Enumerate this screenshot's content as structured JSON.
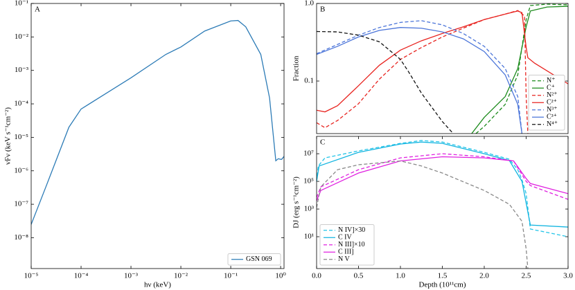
{
  "chart_data": [
    {
      "type": "line",
      "label": "A",
      "xlabel": "hν (keV)",
      "ylabel": "νFν (keV s⁻¹cm⁻²)",
      "xscale": "log",
      "yscale": "log",
      "xlim": [
        1e-05,
        1.17
      ],
      "ylim": [
        1.2e-09,
        0.1
      ],
      "xticks": [
        {
          "value": 1e-05,
          "label": "10⁻⁵"
        },
        {
          "value": 0.0001,
          "label": "10⁻⁴"
        },
        {
          "value": 0.001,
          "label": "10⁻³"
        },
        {
          "value": 0.01,
          "label": "10⁻²"
        },
        {
          "value": 0.1,
          "label": "10⁻¹"
        },
        {
          "value": 1,
          "label": "10⁰"
        }
      ],
      "yticks": [
        {
          "value": 1e-08,
          "label": "10⁻⁸"
        },
        {
          "value": 1e-07,
          "label": "10⁻⁷"
        },
        {
          "value": 1e-06,
          "label": "10⁻⁶"
        },
        {
          "value": 1e-05,
          "label": "10⁻⁵"
        },
        {
          "value": 0.0001,
          "label": "10⁻⁴"
        },
        {
          "value": 0.001,
          "label": "10⁻³"
        },
        {
          "value": 0.01,
          "label": "10⁻²"
        },
        {
          "value": 0.1,
          "label": "10⁻¹"
        }
      ],
      "legend": "lower right",
      "series": [
        {
          "name": "GSN 069",
          "color": "#2c7bb6",
          "dash": "solid",
          "x": [
            1e-05,
            2e-05,
            5.7e-05,
            0.0001,
            0.001,
            0.005,
            0.01,
            0.03,
            0.1,
            0.14,
            0.2,
            0.4,
            0.6,
            0.8,
            0.9,
            1.0,
            1.05,
            1.17
          ],
          "values": [
            2.5e-08,
            3.5e-07,
            2e-05,
            7e-05,
            0.0006,
            0.003,
            0.005,
            0.015,
            0.03,
            0.031,
            0.02,
            0.003,
            0.00015,
            2e-06,
            2.3e-06,
            2.2e-06,
            2.2e-06,
            2.7e-06
          ]
        }
      ]
    },
    {
      "type": "line",
      "label": "B",
      "ylabel": "Fraction",
      "xscale": "linear",
      "yscale": "log",
      "xlim": [
        0,
        3
      ],
      "ylim": [
        0.021,
        1.0
      ],
      "yticks": [
        0.1,
        {
          "value": 1.0,
          "label": "1.0"
        }
      ],
      "legend": "lower right",
      "series": [
        {
          "name": "N⁺",
          "color": "#1a8a1a",
          "dash": "dashed",
          "x": [
            1.9,
            2.0,
            2.25,
            2.4,
            2.5,
            2.55,
            2.75,
            3.0
          ],
          "values": [
            0.021,
            0.026,
            0.05,
            0.12,
            0.62,
            0.94,
            0.98,
            0.96
          ]
        },
        {
          "name": "C⁺",
          "color": "#1a8a1a",
          "dash": "solid",
          "x": [
            1.85,
            2.0,
            2.25,
            2.4,
            2.5,
            2.55,
            2.75,
            3.0
          ],
          "values": [
            0.021,
            0.034,
            0.063,
            0.145,
            0.5,
            0.8,
            0.9,
            0.92
          ]
        },
        {
          "name": "N²⁺",
          "color": "#e8231f",
          "dash": "dashed",
          "x": [
            0,
            0.1,
            0.25,
            0.5,
            0.75,
            1.0,
            1.25,
            1.5,
            1.75,
            2.0,
            2.25,
            2.4,
            2.48,
            2.5,
            2.52
          ],
          "values": [
            0.029,
            0.025,
            0.031,
            0.051,
            0.106,
            0.19,
            0.27,
            0.37,
            0.48,
            0.62,
            0.73,
            0.81,
            0.69,
            0.063,
            0.021
          ]
        },
        {
          "name": "C²⁺",
          "color": "#e8231f",
          "dash": "solid",
          "x": [
            0,
            0.1,
            0.25,
            0.5,
            0.75,
            1.0,
            1.25,
            1.5,
            1.75,
            2.0,
            2.25,
            2.4,
            2.45,
            2.5,
            2.52,
            2.6,
            3.0
          ],
          "values": [
            0.042,
            0.04,
            0.048,
            0.087,
            0.16,
            0.25,
            0.33,
            0.41,
            0.5,
            0.62,
            0.73,
            0.8,
            0.76,
            0.27,
            0.2,
            0.17,
            0.092
          ]
        },
        {
          "name": "N³⁺",
          "color": "#4a74d9",
          "dash": "dashed",
          "x": [
            0,
            0.5,
            0.75,
            1.0,
            1.25,
            1.5,
            1.75,
            2.0,
            2.25,
            2.4,
            2.45
          ],
          "values": [
            0.225,
            0.39,
            0.49,
            0.57,
            0.6,
            0.53,
            0.41,
            0.28,
            0.145,
            0.063,
            0.021
          ]
        },
        {
          "name": "C³⁺",
          "color": "#4a74d9",
          "dash": "solid",
          "x": [
            0,
            0.25,
            0.5,
            0.75,
            1.0,
            1.25,
            1.5,
            1.75,
            2.0,
            2.25,
            2.4,
            2.45
          ],
          "values": [
            0.22,
            0.28,
            0.37,
            0.45,
            0.49,
            0.48,
            0.43,
            0.35,
            0.24,
            0.12,
            0.05,
            0.021
          ]
        },
        {
          "name": "N⁴⁺",
          "color": "#111111",
          "dash": "dashed",
          "x": [
            0,
            0.25,
            0.5,
            0.75,
            1.0,
            1.1,
            1.25,
            1.5,
            1.63
          ],
          "values": [
            0.435,
            0.43,
            0.39,
            0.32,
            0.19,
            0.13,
            0.07,
            0.03,
            0.021
          ]
        }
      ]
    },
    {
      "type": "line",
      "label": "C",
      "xlabel": "Depth (10¹¹cm)",
      "ylabel": "DJ (erg s⁻¹cm⁻²)",
      "xscale": "linear",
      "yscale": "log",
      "xlim": [
        0,
        3
      ],
      "ylim": [
        0.05,
        180000000
      ],
      "xticks": [
        {
          "value": 0,
          "label": "0.0"
        },
        {
          "value": 0.5,
          "label": "0.5"
        },
        {
          "value": 1,
          "label": "1.0"
        },
        {
          "value": 1.5,
          "label": "1.5"
        },
        {
          "value": 2,
          "label": "2.0"
        },
        {
          "value": 2.5,
          "label": "2.5"
        },
        {
          "value": 3,
          "label": "3.0"
        }
      ],
      "yticks": [
        {
          "value": 10,
          "label": "10¹"
        },
        {
          "value": 1000,
          "label": "10³"
        },
        {
          "value": 100000,
          "label": "10⁵"
        },
        {
          "value": 10000000,
          "label": "10⁷"
        }
      ],
      "legend": "lower left",
      "series": [
        {
          "name": "N IV]×30",
          "color": "#22c4e8",
          "dash": "dashed",
          "x": [
            0,
            0.02,
            0.1,
            0.5,
            1.0,
            1.25,
            1.5,
            2.0,
            2.3,
            2.4,
            2.45,
            2.5,
            2.55,
            3.0
          ],
          "values": [
            100000,
            1300000,
            5000000,
            16000000,
            56000000,
            90000000,
            70000000,
            12600000,
            4000000,
            700000,
            130000,
            13000,
            36,
            10
          ]
        },
        {
          "name": "C IV",
          "color": "#10b4e0",
          "dash": "solid",
          "x": [
            0,
            0.03,
            0.5,
            1.0,
            1.25,
            1.5,
            2.0,
            2.3,
            2.45,
            2.55,
            3.0
          ],
          "values": [
            100000,
            1300000,
            12600000,
            50000000,
            70000000,
            56000000,
            10000000,
            3200000,
            100000,
            70,
            50
          ]
        },
        {
          "name": "N III]×10",
          "color": "#e020e0",
          "dash": "dashed",
          "x": [
            0,
            0.05,
            0.5,
            1.0,
            1.5,
            2.0,
            2.35,
            2.5,
            2.55,
            3.0
          ],
          "values": [
            7000,
            40000,
            700000,
            5000000,
            10000000,
            6000000,
            3000000,
            100000,
            50000,
            5000
          ]
        },
        {
          "name": "C III]",
          "color": "#e020e0",
          "dash": "solid",
          "x": [
            0,
            0.05,
            0.5,
            1.0,
            1.5,
            2.0,
            2.35,
            2.5,
            2.55,
            3.0
          ],
          "values": [
            4000,
            22000,
            400000,
            3000000,
            6000000,
            5000000,
            3000000,
            160000,
            70000,
            13000
          ]
        },
        {
          "name": "N V",
          "color": "#888888",
          "dash": "dashed",
          "x": [
            0,
            0.05,
            0.25,
            0.5,
            1.0,
            1.25,
            1.5,
            2.0,
            2.3,
            2.45,
            2.5,
            2.52
          ],
          "values": [
            1300,
            40000,
            700000,
            1600000,
            3000000,
            1300000,
            400000,
            22000,
            2200,
            130,
            1.3,
            0.05
          ]
        }
      ]
    }
  ]
}
